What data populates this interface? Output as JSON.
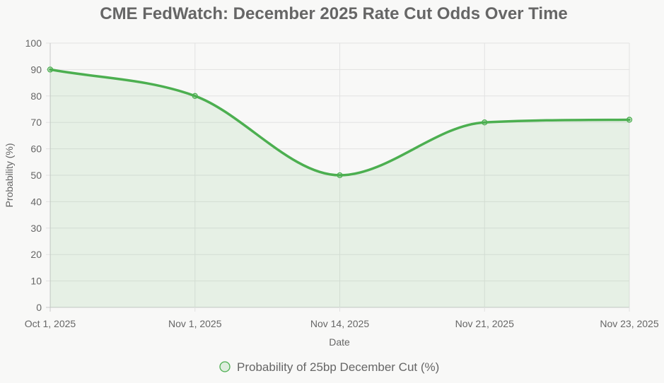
{
  "chart_data": {
    "type": "line",
    "title": "CME FedWatch: December 2025 Rate Cut Odds Over Time",
    "xlabel": "Date",
    "ylabel": "Probability (%)",
    "categories": [
      "Oct 1, 2025",
      "Nov 1, 2025",
      "Nov 14, 2025",
      "Nov 21, 2025",
      "Nov 23, 2025"
    ],
    "series": [
      {
        "name": "Probability of 25bp December Cut (%)",
        "values": [
          90,
          80,
          50,
          70,
          71
        ],
        "color": "#4caf50",
        "fill": "rgba(76, 175, 80, 0.1)"
      }
    ],
    "ylim": [
      0,
      100
    ],
    "yticks": [
      0,
      10,
      20,
      30,
      40,
      50,
      60,
      70,
      80,
      90,
      100
    ],
    "grid": true,
    "filled": true,
    "smooth": true,
    "legend": "bottom"
  }
}
